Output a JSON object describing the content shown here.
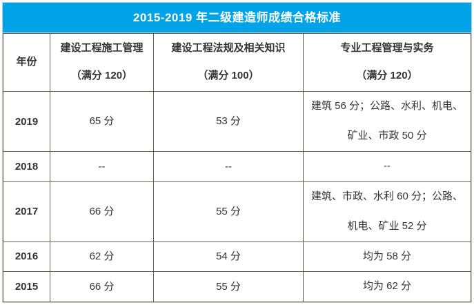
{
  "page": {
    "title": "2015-2019 年二级建造师成绩合格标准"
  },
  "colors": {
    "title_bg": "#00a3e8",
    "title_text": "#ffffff",
    "inner_border": "#5f5e57",
    "outer_border": "#cbc9c1",
    "body_text": "#333333"
  },
  "table": {
    "columns": [
      {
        "title": "年份",
        "subtitle": ""
      },
      {
        "title": "建设工程施工管理",
        "subtitle": "（满分 120）"
      },
      {
        "title": "建设工程法规及相关知识",
        "subtitle": "（满分 100）"
      },
      {
        "title": "专业工程管理与实务",
        "subtitle": "（满分 120）"
      }
    ],
    "rows": [
      {
        "year": "2019",
        "construction_management": "65 分",
        "regulations_knowledge": "53 分",
        "professional_practice": "建筑 56 分；公路、水利、机电、矿业、市政 50 分"
      },
      {
        "year": "2018",
        "construction_management": "--",
        "regulations_knowledge": "--",
        "professional_practice": "--"
      },
      {
        "year": "2017",
        "construction_management": "66 分",
        "regulations_knowledge": "55 分",
        "professional_practice": "建筑、市政、水利 60 分；公路、机电、矿业 52 分"
      },
      {
        "year": "2016",
        "construction_management": "62 分",
        "regulations_knowledge": "54 分",
        "professional_practice": "均为 58 分"
      },
      {
        "year": "2015",
        "construction_management": "66 分",
        "regulations_knowledge": "55 分",
        "professional_practice": "均为 62 分"
      }
    ]
  }
}
